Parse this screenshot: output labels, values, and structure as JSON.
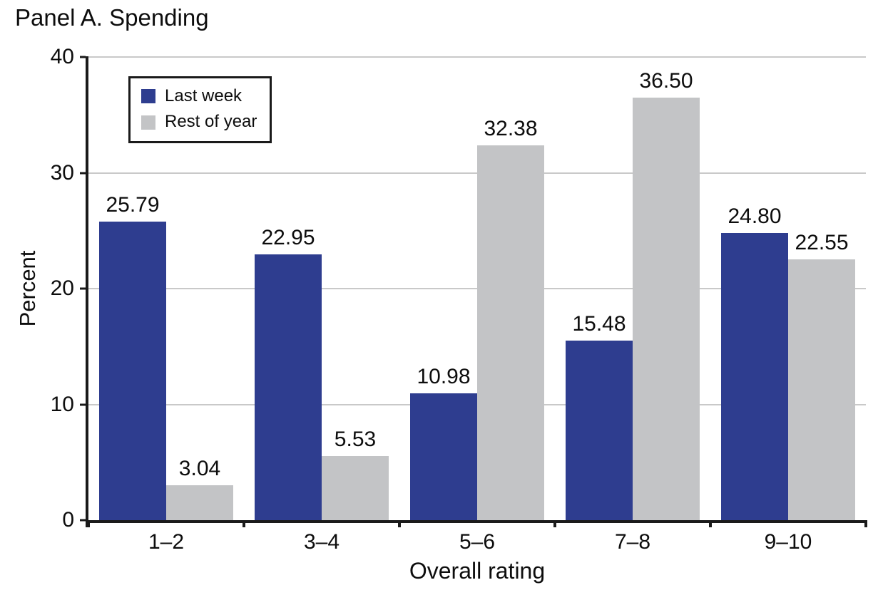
{
  "chart_data": {
    "type": "bar",
    "title": "Panel A. Spending",
    "categories": [
      "1–2",
      "3–4",
      "5–6",
      "7–8",
      "9–10"
    ],
    "series": [
      {
        "name": "Last week",
        "color": "#2e3d8f",
        "values": [
          25.79,
          22.95,
          10.98,
          15.48,
          24.8
        ]
      },
      {
        "name": "Rest of year",
        "color": "#c3c4c6",
        "values": [
          3.04,
          5.53,
          32.38,
          36.5,
          22.55
        ]
      }
    ],
    "xlabel": "Overall rating",
    "ylabel": "Percent",
    "ylim": [
      0,
      40
    ],
    "yticks": [
      0,
      10,
      20,
      30,
      40
    ],
    "grid": true,
    "gridline_color": "#c9c9c9",
    "axis_color": "#1a1a1a",
    "legend_position": "upper-left",
    "value_labels": true,
    "value_label_decimals": 2
  }
}
